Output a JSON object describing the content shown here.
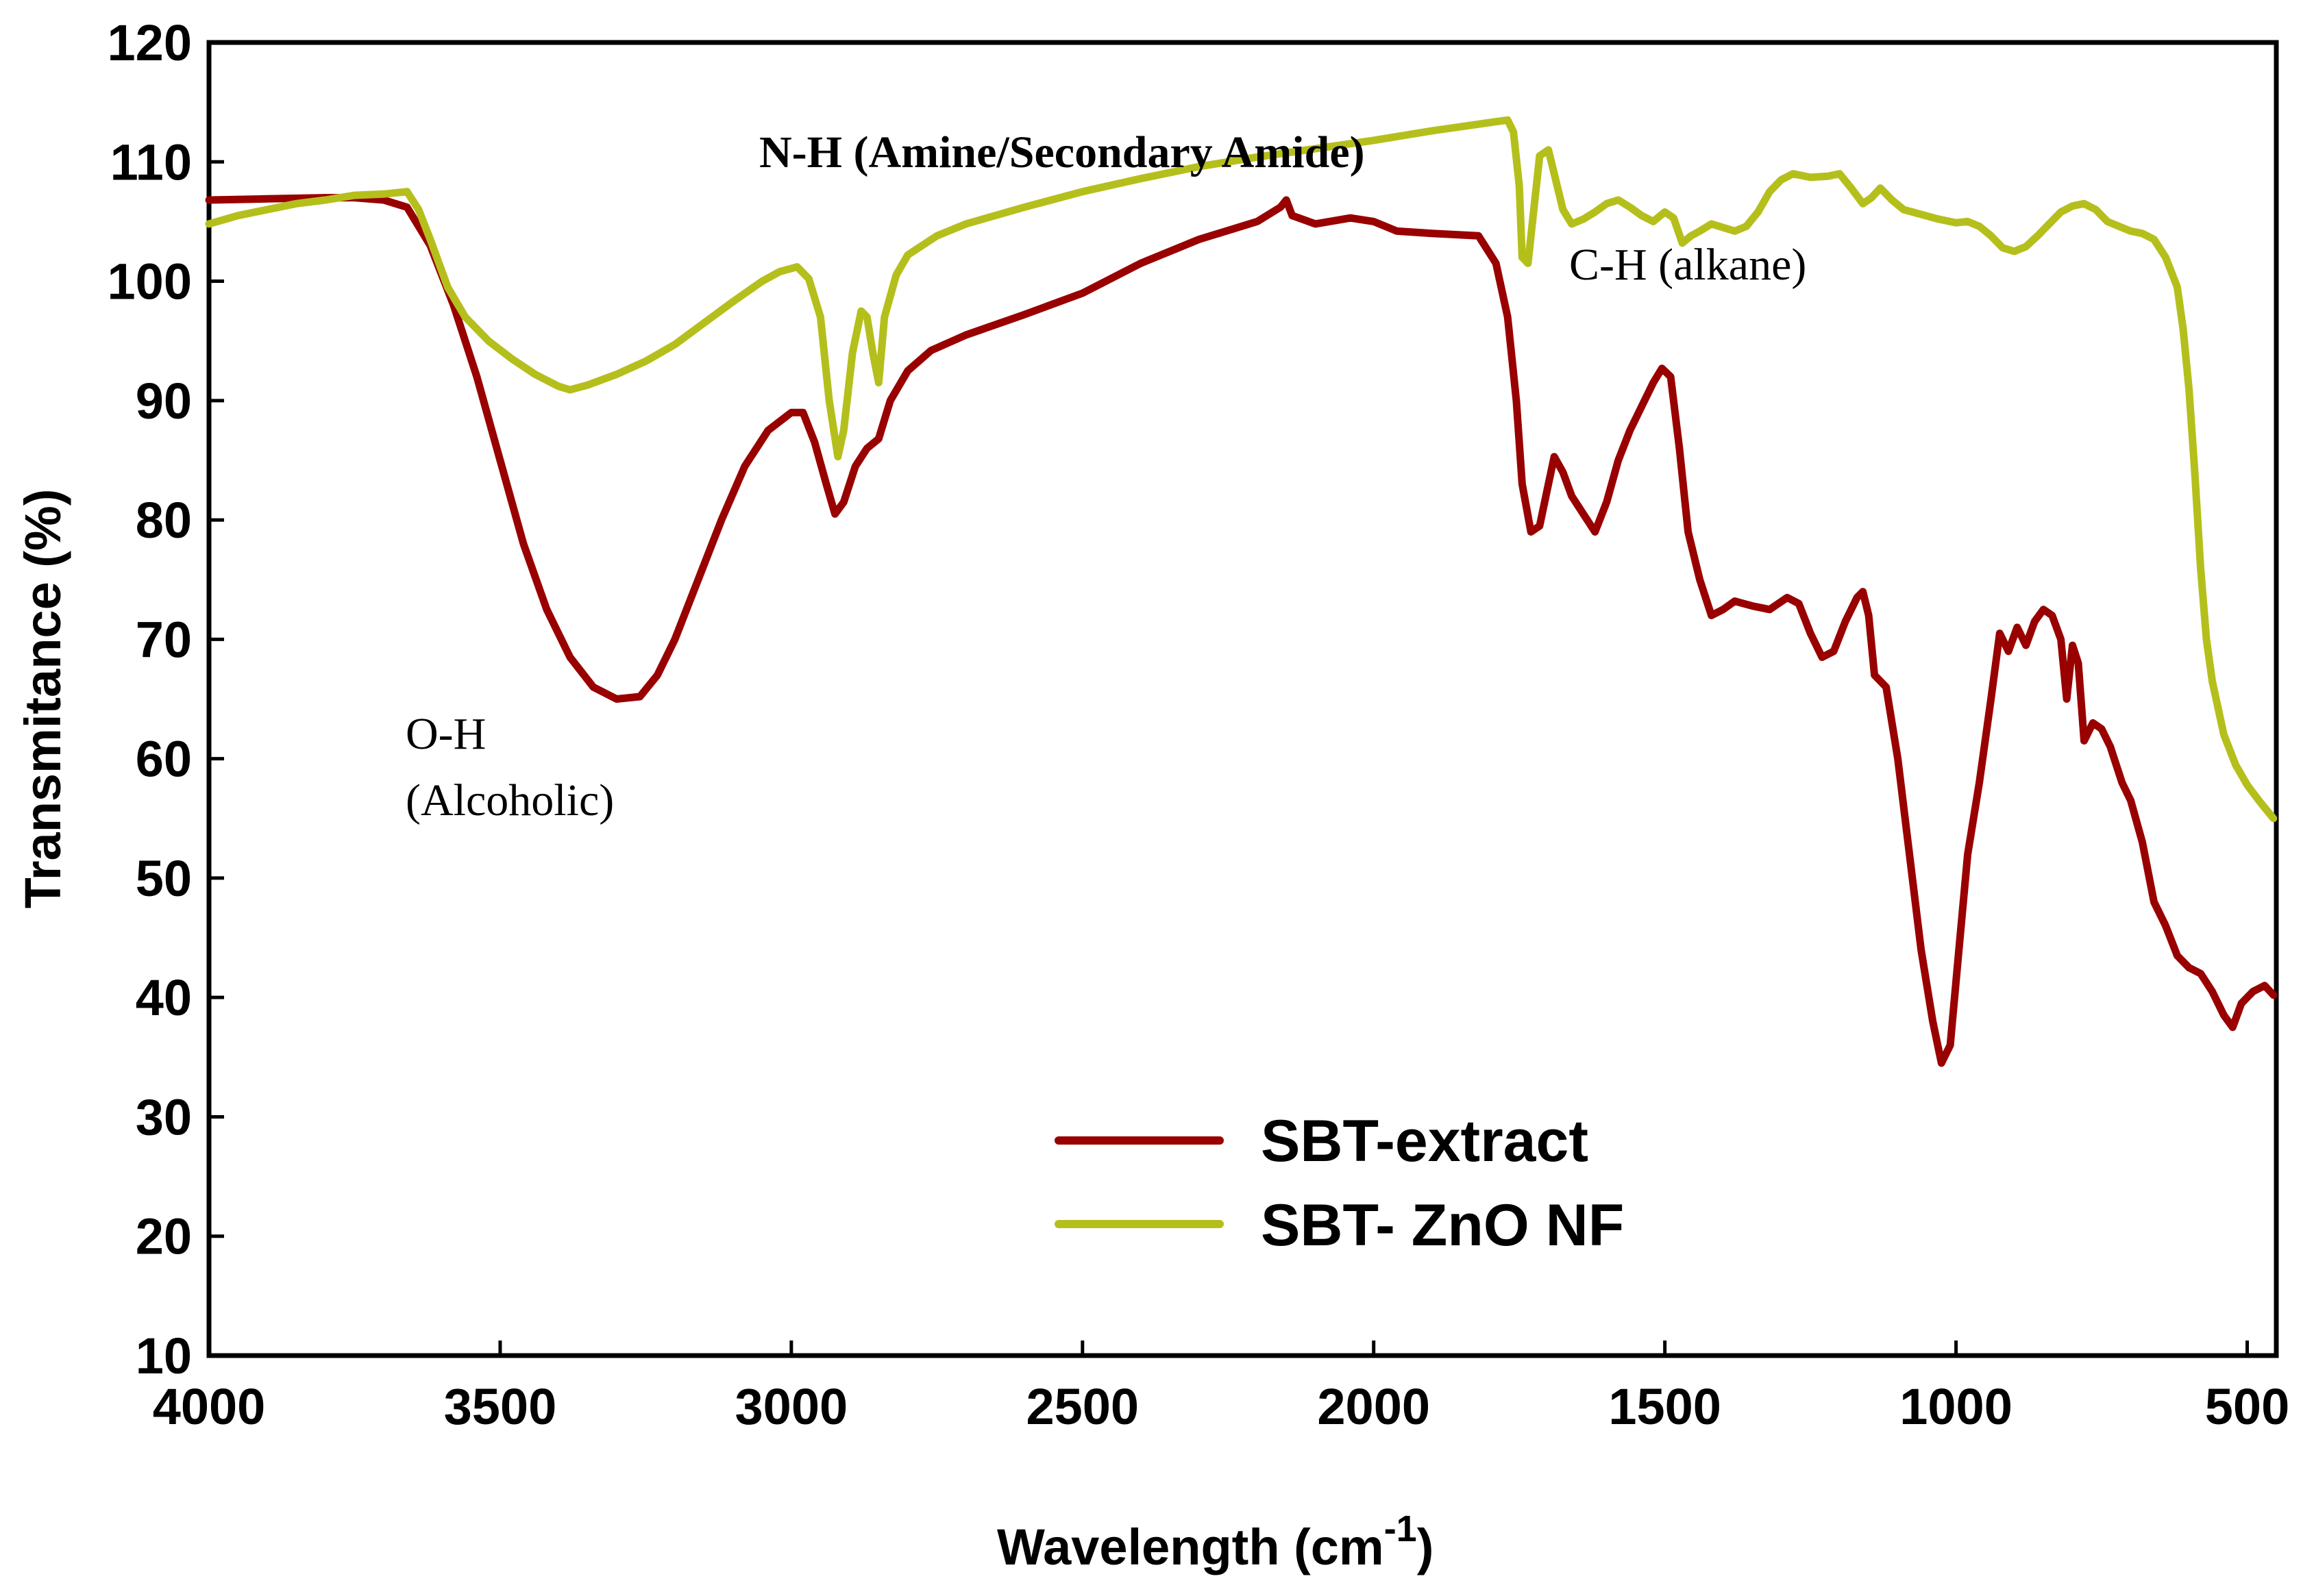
{
  "chart_data": {
    "type": "line",
    "title": "",
    "xlabel": "Wavelength (cm",
    "xlabel_sup": "-1",
    "xlabel_close": ")",
    "ylabel": "Transmitance (%)",
    "xlim": [
      4000,
      450
    ],
    "ylim": [
      10,
      120
    ],
    "x_reversed": true,
    "grid": false,
    "legend_position": "bottom-center",
    "xticks": [
      4000,
      3500,
      3000,
      2500,
      2000,
      1500,
      1000,
      500
    ],
    "yticks": [
      10,
      20,
      30,
      40,
      50,
      60,
      70,
      80,
      90,
      100,
      110,
      120
    ],
    "series": [
      {
        "name": "SBT-extract",
        "color": "#990000",
        "points": [
          [
            4000,
            106.8
          ],
          [
            3900,
            106.9
          ],
          [
            3800,
            107.0
          ],
          [
            3750,
            107.0
          ],
          [
            3700,
            106.8
          ],
          [
            3660,
            106.2
          ],
          [
            3620,
            103.0
          ],
          [
            3580,
            98.0
          ],
          [
            3540,
            92.0
          ],
          [
            3500,
            85.0
          ],
          [
            3460,
            78.0
          ],
          [
            3420,
            72.5
          ],
          [
            3380,
            68.5
          ],
          [
            3340,
            66.0
          ],
          [
            3300,
            65.0
          ],
          [
            3260,
            65.2
          ],
          [
            3230,
            67.0
          ],
          [
            3200,
            70.0
          ],
          [
            3160,
            75.0
          ],
          [
            3120,
            80.0
          ],
          [
            3080,
            84.5
          ],
          [
            3040,
            87.5
          ],
          [
            3000,
            89.0
          ],
          [
            2980,
            89.0
          ],
          [
            2960,
            86.5
          ],
          [
            2940,
            83.0
          ],
          [
            2925,
            80.5
          ],
          [
            2910,
            81.5
          ],
          [
            2890,
            84.5
          ],
          [
            2870,
            86.0
          ],
          [
            2850,
            86.8
          ],
          [
            2830,
            90.0
          ],
          [
            2800,
            92.5
          ],
          [
            2760,
            94.2
          ],
          [
            2700,
            95.5
          ],
          [
            2600,
            97.2
          ],
          [
            2500,
            99.0
          ],
          [
            2400,
            101.5
          ],
          [
            2300,
            103.5
          ],
          [
            2200,
            105.0
          ],
          [
            2160,
            106.2
          ],
          [
            2150,
            106.8
          ],
          [
            2140,
            105.5
          ],
          [
            2100,
            104.8
          ],
          [
            2040,
            105.3
          ],
          [
            2000,
            105.0
          ],
          [
            1960,
            104.2
          ],
          [
            1900,
            104.0
          ],
          [
            1820,
            103.8
          ],
          [
            1790,
            101.5
          ],
          [
            1770,
            97.0
          ],
          [
            1755,
            90.0
          ],
          [
            1745,
            83.0
          ],
          [
            1730,
            79.0
          ],
          [
            1715,
            79.5
          ],
          [
            1700,
            83.0
          ],
          [
            1690,
            85.3
          ],
          [
            1675,
            84.0
          ],
          [
            1660,
            82.0
          ],
          [
            1640,
            80.5
          ],
          [
            1620,
            79.0
          ],
          [
            1600,
            81.5
          ],
          [
            1580,
            85.0
          ],
          [
            1560,
            87.5
          ],
          [
            1540,
            89.5
          ],
          [
            1520,
            91.5
          ],
          [
            1505,
            92.7
          ],
          [
            1490,
            92.0
          ],
          [
            1475,
            86.0
          ],
          [
            1460,
            79.0
          ],
          [
            1440,
            75.0
          ],
          [
            1420,
            72.0
          ],
          [
            1400,
            72.5
          ],
          [
            1380,
            73.2
          ],
          [
            1350,
            72.8
          ],
          [
            1320,
            72.5
          ],
          [
            1290,
            73.5
          ],
          [
            1270,
            73.0
          ],
          [
            1250,
            70.5
          ],
          [
            1230,
            68.5
          ],
          [
            1210,
            69.0
          ],
          [
            1190,
            71.5
          ],
          [
            1170,
            73.5
          ],
          [
            1160,
            74.0
          ],
          [
            1150,
            72.0
          ],
          [
            1140,
            67.0
          ],
          [
            1120,
            66.0
          ],
          [
            1100,
            60.0
          ],
          [
            1080,
            52.0
          ],
          [
            1060,
            44.0
          ],
          [
            1040,
            38.0
          ],
          [
            1025,
            34.5
          ],
          [
            1010,
            36.0
          ],
          [
            995,
            44.0
          ],
          [
            980,
            52.0
          ],
          [
            960,
            58.0
          ],
          [
            940,
            65.0
          ],
          [
            925,
            70.5
          ],
          [
            910,
            69.0
          ],
          [
            895,
            71.0
          ],
          [
            880,
            69.5
          ],
          [
            865,
            71.5
          ],
          [
            850,
            72.5
          ],
          [
            835,
            72.0
          ],
          [
            820,
            70.0
          ],
          [
            810,
            65.0
          ],
          [
            800,
            69.5
          ],
          [
            790,
            68.0
          ],
          [
            780,
            61.5
          ],
          [
            765,
            63.0
          ],
          [
            750,
            62.5
          ],
          [
            735,
            61.0
          ],
          [
            715,
            58.0
          ],
          [
            700,
            56.5
          ],
          [
            680,
            53.0
          ],
          [
            660,
            48.0
          ],
          [
            640,
            46.0
          ],
          [
            620,
            43.5
          ],
          [
            600,
            42.5
          ],
          [
            580,
            42.0
          ],
          [
            560,
            40.5
          ],
          [
            540,
            38.5
          ],
          [
            525,
            37.5
          ],
          [
            510,
            39.5
          ],
          [
            490,
            40.5
          ],
          [
            470,
            41.0
          ],
          [
            455,
            40.2
          ]
        ]
      },
      {
        "name": "SBT- ZnO NF",
        "color": "#B5BF1C",
        "points": [
          [
            4000,
            104.8
          ],
          [
            3950,
            105.5
          ],
          [
            3900,
            106.0
          ],
          [
            3850,
            106.5
          ],
          [
            3800,
            106.8
          ],
          [
            3750,
            107.2
          ],
          [
            3700,
            107.3
          ],
          [
            3660,
            107.5
          ],
          [
            3640,
            106.0
          ],
          [
            3620,
            103.5
          ],
          [
            3590,
            99.5
          ],
          [
            3560,
            97.0
          ],
          [
            3520,
            95.0
          ],
          [
            3480,
            93.5
          ],
          [
            3440,
            92.2
          ],
          [
            3400,
            91.2
          ],
          [
            3380,
            90.9
          ],
          [
            3350,
            91.3
          ],
          [
            3300,
            92.2
          ],
          [
            3250,
            93.3
          ],
          [
            3200,
            94.7
          ],
          [
            3150,
            96.5
          ],
          [
            3100,
            98.3
          ],
          [
            3050,
            100.0
          ],
          [
            3020,
            100.8
          ],
          [
            2990,
            101.2
          ],
          [
            2970,
            100.2
          ],
          [
            2950,
            97.0
          ],
          [
            2935,
            90.0
          ],
          [
            2920,
            85.3
          ],
          [
            2910,
            87.5
          ],
          [
            2895,
            94.0
          ],
          [
            2880,
            97.5
          ],
          [
            2870,
            97.0
          ],
          [
            2860,
            94.0
          ],
          [
            2850,
            91.5
          ],
          [
            2840,
            97.0
          ],
          [
            2820,
            100.5
          ],
          [
            2800,
            102.2
          ],
          [
            2750,
            103.8
          ],
          [
            2700,
            104.8
          ],
          [
            2600,
            106.2
          ],
          [
            2500,
            107.5
          ],
          [
            2400,
            108.6
          ],
          [
            2300,
            109.6
          ],
          [
            2200,
            110.4
          ],
          [
            2100,
            111.1
          ],
          [
            2000,
            111.8
          ],
          [
            1900,
            112.6
          ],
          [
            1800,
            113.3
          ],
          [
            1770,
            113.5
          ],
          [
            1760,
            112.5
          ],
          [
            1750,
            108.0
          ],
          [
            1745,
            102.0
          ],
          [
            1735,
            101.5
          ],
          [
            1725,
            106.0
          ],
          [
            1715,
            110.5
          ],
          [
            1700,
            111.0
          ],
          [
            1690,
            109.0
          ],
          [
            1675,
            106.0
          ],
          [
            1660,
            104.8
          ],
          [
            1640,
            105.2
          ],
          [
            1620,
            105.8
          ],
          [
            1600,
            106.5
          ],
          [
            1580,
            106.8
          ],
          [
            1560,
            106.2
          ],
          [
            1540,
            105.5
          ],
          [
            1520,
            105.0
          ],
          [
            1500,
            105.8
          ],
          [
            1485,
            105.3
          ],
          [
            1470,
            103.2
          ],
          [
            1455,
            103.8
          ],
          [
            1440,
            104.2
          ],
          [
            1420,
            104.8
          ],
          [
            1400,
            104.5
          ],
          [
            1380,
            104.2
          ],
          [
            1360,
            104.6
          ],
          [
            1340,
            105.8
          ],
          [
            1320,
            107.5
          ],
          [
            1300,
            108.5
          ],
          [
            1280,
            109.0
          ],
          [
            1250,
            108.7
          ],
          [
            1220,
            108.8
          ],
          [
            1200,
            109.0
          ],
          [
            1180,
            107.8
          ],
          [
            1160,
            106.5
          ],
          [
            1145,
            107.0
          ],
          [
            1130,
            107.8
          ],
          [
            1110,
            106.8
          ],
          [
            1090,
            106.0
          ],
          [
            1060,
            105.6
          ],
          [
            1030,
            105.2
          ],
          [
            1000,
            104.9
          ],
          [
            980,
            105.0
          ],
          [
            960,
            104.6
          ],
          [
            940,
            103.8
          ],
          [
            920,
            102.8
          ],
          [
            900,
            102.5
          ],
          [
            880,
            102.9
          ],
          [
            860,
            103.8
          ],
          [
            840,
            104.8
          ],
          [
            820,
            105.8
          ],
          [
            800,
            106.3
          ],
          [
            780,
            106.5
          ],
          [
            760,
            106.0
          ],
          [
            740,
            105.0
          ],
          [
            720,
            104.6
          ],
          [
            700,
            104.2
          ],
          [
            680,
            104.0
          ],
          [
            660,
            103.5
          ],
          [
            640,
            102.0
          ],
          [
            620,
            99.5
          ],
          [
            610,
            96.0
          ],
          [
            600,
            91.0
          ],
          [
            590,
            84.0
          ],
          [
            580,
            76.0
          ],
          [
            570,
            70.0
          ],
          [
            560,
            66.5
          ],
          [
            540,
            62.0
          ],
          [
            520,
            59.5
          ],
          [
            500,
            57.8
          ],
          [
            480,
            56.5
          ],
          [
            455,
            55.0
          ]
        ]
      }
    ],
    "annotations": [
      {
        "line1": "O-H",
        "line2": "(Alcoholic)"
      },
      {
        "text": "N-H (Amine/Secondary Amide)"
      },
      {
        "text": "C-H (alkane)"
      }
    ]
  }
}
